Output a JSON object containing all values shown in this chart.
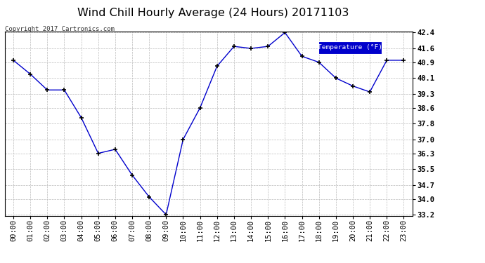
{
  "title": "Wind Chill Hourly Average (24 Hours) 20171103",
  "copyright": "Copyright 2017 Cartronics.com",
  "legend_label": "Temperature (°F)",
  "hours": [
    0,
    1,
    2,
    3,
    4,
    5,
    6,
    7,
    8,
    9,
    10,
    11,
    12,
    13,
    14,
    15,
    16,
    17,
    18,
    19,
    20,
    21,
    22,
    23
  ],
  "x_labels": [
    "00:00",
    "01:00",
    "02:00",
    "03:00",
    "04:00",
    "05:00",
    "06:00",
    "07:00",
    "08:00",
    "09:00",
    "10:00",
    "11:00",
    "12:00",
    "13:00",
    "14:00",
    "15:00",
    "16:00",
    "17:00",
    "18:00",
    "19:00",
    "20:00",
    "21:00",
    "22:00",
    "23:00"
  ],
  "values": [
    41.0,
    40.3,
    39.5,
    39.5,
    38.1,
    36.3,
    36.5,
    35.2,
    34.1,
    33.2,
    37.0,
    38.6,
    40.7,
    41.7,
    41.6,
    41.7,
    42.4,
    41.2,
    40.9,
    40.1,
    39.7,
    39.4,
    41.0,
    41.0
  ],
  "ylim_min": 33.2,
  "ylim_max": 42.4,
  "yticks": [
    33.2,
    34.0,
    34.7,
    35.5,
    36.3,
    37.0,
    37.8,
    38.6,
    39.3,
    40.1,
    40.9,
    41.6,
    42.4
  ],
  "line_color": "#0000cc",
  "marker_color": "#000000",
  "bg_color": "#ffffff",
  "plot_bg_color": "#ffffff",
  "grid_color": "#bbbbbb",
  "legend_bg": "#0000cc",
  "legend_text_color": "#ffffff",
  "title_fontsize": 11.5,
  "tick_fontsize": 7.5,
  "copyright_fontsize": 6.5
}
